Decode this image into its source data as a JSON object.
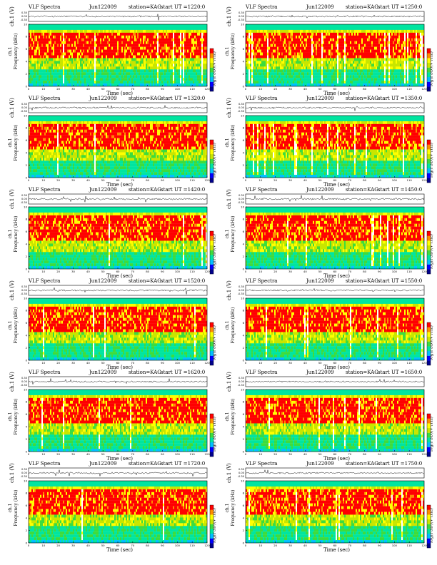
{
  "chart_data": [
    {
      "type": "heatmap",
      "title_left": "VLF Spectra",
      "date": "Jun122009",
      "station": "station=KAG",
      "start_ut": "start  UT =1220:0",
      "waveform_ylabel": "ch.1 (V)",
      "waveform_ticks": [
        "0.30",
        "0.00",
        "-0.30"
      ],
      "ylabel": "ch.1\nFrequency (kHz)",
      "xlabel": "Time (sec)",
      "x_ticks": [
        0,
        10,
        20,
        30,
        40,
        50,
        60,
        70,
        80,
        90,
        100,
        110,
        120
      ],
      "y_ticks": [
        0,
        2,
        4,
        6,
        8,
        10
      ],
      "xlim": [
        0,
        120
      ],
      "ylim": [
        0,
        10
      ],
      "colorbar_label": "log(PSD)(V²/Hz)"
    },
    {
      "type": "heatmap",
      "title_left": "VLF Spectra",
      "date": "Jun122009",
      "station": "station=KAG",
      "start_ut": "start  UT =1250:0",
      "waveform_ylabel": "ch.1 (V)",
      "waveform_ticks": [
        "0.30",
        "0.00",
        "-0.30"
      ],
      "ylabel": "ch.1\nFrequency (kHz)",
      "xlabel": "Time (sec)",
      "x_ticks": [
        0,
        10,
        20,
        30,
        40,
        50,
        60,
        70,
        80,
        90,
        100,
        110,
        120
      ],
      "y_ticks": [
        0,
        2,
        4,
        6,
        8,
        10
      ],
      "xlim": [
        0,
        120
      ],
      "ylim": [
        0,
        10
      ],
      "colorbar_label": "log(PSD)(V²/Hz)"
    },
    {
      "type": "heatmap",
      "title_left": "VLF Spectra",
      "date": "Jun122009",
      "station": "station=KAG",
      "start_ut": "start  UT =1320:0",
      "waveform_ylabel": "ch.1 (V)",
      "waveform_ticks": [
        "0.30",
        "0.00",
        "-0.30"
      ],
      "ylabel": "ch.1\nFrequency (kHz)",
      "xlabel": "Time (sec)",
      "x_ticks": [
        0,
        10,
        20,
        30,
        40,
        50,
        60,
        70,
        80,
        90,
        100,
        110,
        120
      ],
      "y_ticks": [
        0,
        2,
        4,
        6,
        8,
        10
      ],
      "xlim": [
        0,
        120
      ],
      "ylim": [
        0,
        10
      ],
      "colorbar_label": "log(PSD)(V²/Hz)"
    },
    {
      "type": "heatmap",
      "title_left": "VLF Spectra",
      "date": "Jun122009",
      "station": "station=KAG",
      "start_ut": "start  UT =1350:0",
      "waveform_ylabel": "ch.1 (V)",
      "waveform_ticks": [
        "0.30",
        "0.00",
        "-0.30"
      ],
      "ylabel": "ch.1\nFrequency (kHz)",
      "xlabel": "Time (sec)",
      "x_ticks": [
        0,
        10,
        20,
        30,
        40,
        50,
        60,
        70,
        80,
        90,
        100,
        110,
        120
      ],
      "y_ticks": [
        0,
        2,
        4,
        6,
        8,
        10
      ],
      "xlim": [
        0,
        120
      ],
      "ylim": [
        0,
        10
      ],
      "colorbar_label": "log(PSD)(V²/Hz)"
    },
    {
      "type": "heatmap",
      "title_left": "VLF Spectra",
      "date": "Jun122009",
      "station": "station=KAG",
      "start_ut": "start  UT =1420:0",
      "waveform_ylabel": "ch.1 (V)",
      "waveform_ticks": [
        "0.30",
        "0.00",
        "-0.30"
      ],
      "ylabel": "ch.1\nFrequency (kHz)",
      "xlabel": "Time (sec)",
      "x_ticks": [
        0,
        10,
        20,
        30,
        40,
        50,
        60,
        70,
        80,
        90,
        100,
        110,
        120
      ],
      "y_ticks": [
        0,
        2,
        4,
        6,
        8,
        10
      ],
      "xlim": [
        0,
        120
      ],
      "ylim": [
        0,
        10
      ],
      "colorbar_label": "log(PSD)(V²/Hz)"
    },
    {
      "type": "heatmap",
      "title_left": "VLF Spectra",
      "date": "Jun122009",
      "station": "station=KAG",
      "start_ut": "start  UT =1450:0",
      "waveform_ylabel": "ch.1 (V)",
      "waveform_ticks": [
        "0.30",
        "0.00",
        "-0.30"
      ],
      "ylabel": "ch.1\nFrequency (kHz)",
      "xlabel": "Time (sec)",
      "x_ticks": [
        0,
        10,
        20,
        30,
        40,
        50,
        60,
        70,
        80,
        90,
        100,
        110,
        120
      ],
      "y_ticks": [
        0,
        2,
        4,
        6,
        8,
        10
      ],
      "xlim": [
        0,
        120
      ],
      "ylim": [
        0,
        10
      ],
      "colorbar_label": "log(PSD)(V²/Hz)"
    },
    {
      "type": "heatmap",
      "title_left": "VLF Spectra",
      "date": "Jun122009",
      "station": "station=KAG",
      "start_ut": "start  UT =1520:0",
      "waveform_ylabel": "ch.1 (V)",
      "waveform_ticks": [
        "0.30",
        "0.00",
        "-0.30"
      ],
      "ylabel": "ch.1\nFrequency (kHz)",
      "xlabel": "Time (sec)",
      "x_ticks": [
        0,
        10,
        20,
        30,
        40,
        50,
        60,
        70,
        80,
        90,
        100,
        110,
        120
      ],
      "y_ticks": [
        0,
        2,
        4,
        6,
        8,
        10
      ],
      "xlim": [
        0,
        120
      ],
      "ylim": [
        0,
        10
      ],
      "colorbar_label": "log(PSD)(V²/Hz)"
    },
    {
      "type": "heatmap",
      "title_left": "VLF Spectra",
      "date": "Jun122009",
      "station": "station=KAG",
      "start_ut": "start  UT =1550:0",
      "waveform_ylabel": "ch.1 (V)",
      "waveform_ticks": [
        "0.30",
        "0.00",
        "-0.30"
      ],
      "ylabel": "ch.1\nFrequency (kHz)",
      "xlabel": "Time (sec)",
      "x_ticks": [
        0,
        10,
        20,
        30,
        40,
        50,
        60,
        70,
        80,
        90,
        100,
        110,
        120
      ],
      "y_ticks": [
        0,
        2,
        4,
        6,
        8,
        10
      ],
      "xlim": [
        0,
        120
      ],
      "ylim": [
        0,
        10
      ],
      "colorbar_label": "log(PSD)(V²/Hz)"
    },
    {
      "type": "heatmap",
      "title_left": "VLF Spectra",
      "date": "Jun122009",
      "station": "station=KAG",
      "start_ut": "start  UT =1620:0",
      "waveform_ylabel": "ch.1 (V)",
      "waveform_ticks": [
        "0.30",
        "0.00",
        "-0.30"
      ],
      "ylabel": "ch.1\nFrequency (kHz)",
      "xlabel": "Time (sec)",
      "x_ticks": [
        0,
        10,
        20,
        30,
        40,
        50,
        60,
        70,
        80,
        90,
        100,
        110,
        120
      ],
      "y_ticks": [
        0,
        2,
        4,
        6,
        8,
        10
      ],
      "xlim": [
        0,
        120
      ],
      "ylim": [
        0,
        10
      ],
      "colorbar_label": "log(PSD)(V²/Hz)"
    },
    {
      "type": "heatmap",
      "title_left": "VLF Spectra",
      "date": "Jun122009",
      "station": "station=KAG",
      "start_ut": "start  UT =1650:0",
      "waveform_ylabel": "ch.1 (V)",
      "waveform_ticks": [
        "0.30",
        "0.00",
        "-0.30"
      ],
      "ylabel": "ch.1\nFrequency (kHz)",
      "xlabel": "Time (sec)",
      "x_ticks": [
        0,
        10,
        20,
        30,
        40,
        50,
        60,
        70,
        80,
        90,
        100,
        110,
        120
      ],
      "y_ticks": [
        0,
        2,
        4,
        6,
        8,
        10
      ],
      "xlim": [
        0,
        120
      ],
      "ylim": [
        0,
        10
      ],
      "colorbar_label": "log(PSD)(V²/Hz)"
    },
    {
      "type": "heatmap",
      "title_left": "VLF Spectra",
      "date": "Jun122009",
      "station": "station=KAG",
      "start_ut": "start  UT =1720:0",
      "waveform_ylabel": "ch.1 (V)",
      "waveform_ticks": [
        "0.30",
        "0.00",
        "-0.30"
      ],
      "ylabel": "ch.1\nFrequency (kHz)",
      "xlabel": "Time (sec)",
      "x_ticks": [
        0,
        10,
        20,
        30,
        40,
        50,
        60,
        70,
        80,
        90,
        100,
        110,
        120
      ],
      "y_ticks": [
        0,
        2,
        4,
        6,
        8,
        10
      ],
      "xlim": [
        0,
        120
      ],
      "ylim": [
        0,
        10
      ],
      "colorbar_label": "log(PSD)(V²/Hz)"
    },
    {
      "type": "heatmap",
      "title_left": "VLF Spectra",
      "date": "Jun122009",
      "station": "station=KAG",
      "start_ut": "start  UT =1750:0",
      "waveform_ylabel": "ch.1 (V)",
      "waveform_ticks": [
        "0.30",
        "0.00",
        "-0.30"
      ],
      "ylabel": "ch.1\nFrequency (kHz)",
      "xlabel": "Time (sec)",
      "x_ticks": [
        0,
        10,
        20,
        30,
        40,
        50,
        60,
        70,
        80,
        90,
        100,
        110,
        120
      ],
      "y_ticks": [
        0,
        2,
        4,
        6,
        8,
        10
      ],
      "xlim": [
        0,
        120
      ],
      "ylim": [
        0,
        10
      ],
      "colorbar_label": "log(PSD)(V²/Hz)"
    }
  ],
  "colors": {
    "colormap": [
      "#00008b",
      "#0000ff",
      "#00bfff",
      "#00e5a0",
      "#3ddc3d",
      "#c8e600",
      "#ffff00",
      "#ff8c00",
      "#ff0000",
      "#ffffff"
    ]
  }
}
